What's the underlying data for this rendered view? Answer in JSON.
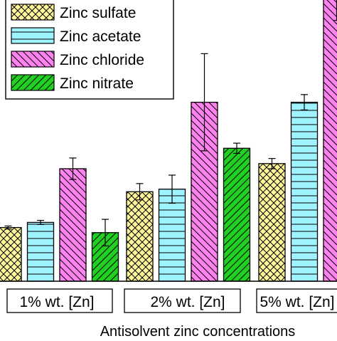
{
  "chart_data": {
    "type": "bar",
    "categories": [
      "1% wt. [Zn]",
      "2% wt. [Zn]",
      "5% wt. [Zn]"
    ],
    "xlabel": "Antisolvent zinc concentrations",
    "series": [
      {
        "name": "Zinc sulfate",
        "color": "#FFF799",
        "pattern": "crosshatch",
        "values": [
          2.1,
          3.5,
          4.6
        ],
        "errors": [
          0.06,
          0.32,
          0.2
        ]
      },
      {
        "name": "Zinc acetate",
        "color": "#9FF3FF",
        "pattern": "horizontal",
        "values": [
          2.3,
          3.6,
          7.0
        ],
        "errors": [
          0.08,
          0.55,
          0.3
        ]
      },
      {
        "name": "Zinc chloride",
        "color": "#FF82F0",
        "pattern": "backslash",
        "values": [
          4.4,
          7.0,
          11.1
        ],
        "errors": [
          0.42,
          1.9,
          0.9
        ]
      },
      {
        "name": "Zinc nitrate",
        "color": "#22D022",
        "pattern": "slash",
        "values": [
          1.9,
          5.2,
          null
        ],
        "errors": [
          0.52,
          0.2,
          null
        ]
      }
    ],
    "ylim": [
      0,
      11
    ],
    "legend_position": "top-left"
  }
}
